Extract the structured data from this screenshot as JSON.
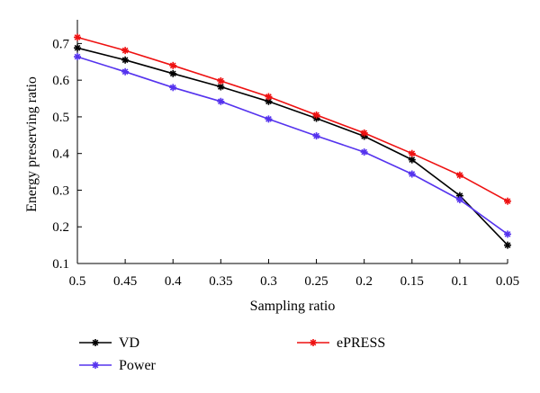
{
  "chart_data": {
    "type": "line",
    "title": "",
    "xlabel": "Sampling ratio",
    "ylabel": "Energy preserving ratio",
    "categories": [
      "0.5",
      "0.45",
      "0.4",
      "0.35",
      "0.3",
      "0.25",
      "0.2",
      "0.15",
      "0.1",
      "0.05"
    ],
    "x": [
      0.5,
      0.45,
      0.4,
      0.35,
      0.3,
      0.25,
      0.2,
      0.15,
      0.1,
      0.05
    ],
    "x_reversed": true,
    "ylim": [
      0.1,
      0.75
    ],
    "yticks": [
      "0.1",
      "0.2",
      "0.3",
      "0.4",
      "0.5",
      "0.6",
      "0.7"
    ],
    "yticks_values": [
      0.1,
      0.2,
      0.3,
      0.4,
      0.5,
      0.6,
      0.7
    ],
    "grid": false,
    "legend_position": "bottom",
    "series": [
      {
        "name": "VD",
        "color": "#000000",
        "values": [
          0.688,
          0.655,
          0.618,
          0.582,
          0.542,
          0.496,
          0.447,
          0.383,
          0.285,
          0.15
        ]
      },
      {
        "name": "Power",
        "color": "#5533ee",
        "values": [
          0.664,
          0.623,
          0.58,
          0.542,
          0.494,
          0.448,
          0.404,
          0.344,
          0.274,
          0.18
        ]
      },
      {
        "name": "ePRESS",
        "color": "#ee1111",
        "values": [
          0.717,
          0.681,
          0.64,
          0.598,
          0.555,
          0.505,
          0.456,
          0.4,
          0.341,
          0.27
        ]
      }
    ]
  }
}
